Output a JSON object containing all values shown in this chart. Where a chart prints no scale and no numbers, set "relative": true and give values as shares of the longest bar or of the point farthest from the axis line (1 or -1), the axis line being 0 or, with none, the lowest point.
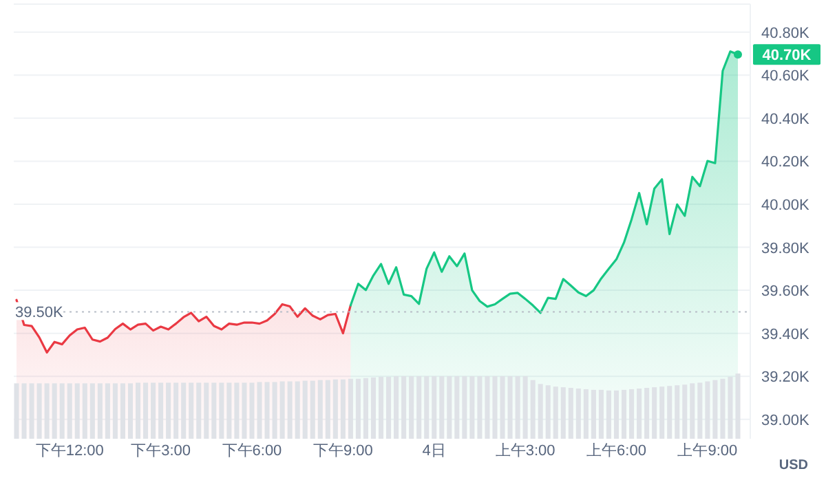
{
  "chart_data": [
    {
      "type": "area",
      "ylabel": "USD",
      "categories": [
        null,
        null,
        null,
        null,
        null,
        null,
        null,
        "下午12:00",
        null,
        null,
        null,
        null,
        null,
        null,
        null,
        null,
        null,
        null,
        null,
        "下午3:00",
        null,
        null,
        null,
        null,
        null,
        null,
        null,
        null,
        null,
        null,
        null,
        "下午6:00",
        null,
        null,
        null,
        null,
        null,
        null,
        null,
        null,
        null,
        null,
        null,
        "下午9:00",
        null,
        null,
        null,
        null,
        null,
        null,
        null,
        null,
        null,
        null,
        null,
        "4日",
        null,
        null,
        null,
        null,
        null,
        null,
        null,
        null,
        null,
        null,
        null,
        "上午3:00",
        null,
        null,
        null,
        null,
        null,
        null,
        null,
        null,
        null,
        null,
        null,
        "上午6:00",
        null,
        null,
        null,
        null,
        null,
        null,
        null,
        null,
        null,
        null,
        null,
        "上午9:00",
        null,
        null,
        null,
        null
      ],
      "ylim": [
        38910,
        40930
      ],
      "yticks": [
        {
          "value": 39000,
          "label": "39.00K"
        },
        {
          "value": 39200,
          "label": "39.20K"
        },
        {
          "value": 39400,
          "label": "39.40K"
        },
        {
          "value": 39600,
          "label": "39.60K"
        },
        {
          "value": 39800,
          "label": "39.80K"
        },
        {
          "value": 40000,
          "label": "40.00K"
        },
        {
          "value": 40200,
          "label": "40.20K"
        },
        {
          "value": 40400,
          "label": "40.40K"
        },
        {
          "value": 40600,
          "label": "40.60K"
        },
        {
          "value": 40800,
          "label": "40.80K"
        }
      ],
      "grid": "y",
      "ref_lines": [
        {
          "axis": "y",
          "value": 39500,
          "label": "39.50K",
          "color": "#b8bec8",
          "line_style": "dotted"
        }
      ],
      "annotations": [
        "40.70K"
      ],
      "series": [
        {
          "color": "#ea3943",
          "values": [
            39555,
            39439,
            39434,
            39381,
            39311,
            39360,
            39349,
            39390,
            39418,
            39426,
            39371,
            39362,
            39380,
            39420,
            39445,
            39418,
            39440,
            39445,
            39413,
            39431,
            39418,
            39445,
            39475,
            39495,
            39456,
            39477,
            39434,
            39418,
            39445,
            39440,
            39450,
            39450,
            39445,
            39460,
            39490,
            39535,
            39525,
            39477,
            39516,
            39482,
            39465,
            39485,
            39490,
            39400,
            39530,
            null,
            null,
            null,
            null,
            null,
            null,
            null,
            null,
            null,
            null,
            null,
            null,
            null,
            null,
            null,
            null,
            null,
            null,
            null,
            null,
            null,
            null,
            null,
            null,
            null,
            null,
            null,
            null,
            null,
            null,
            null,
            null,
            null,
            null,
            null,
            null,
            null,
            null,
            null,
            null,
            null,
            null,
            null,
            null,
            null,
            null,
            null,
            null,
            null,
            null,
            null
          ]
        },
        {
          "color": "#16c784",
          "values": [
            null,
            null,
            null,
            null,
            null,
            null,
            null,
            null,
            null,
            null,
            null,
            null,
            null,
            null,
            null,
            null,
            null,
            null,
            null,
            null,
            null,
            null,
            null,
            null,
            null,
            null,
            null,
            null,
            null,
            null,
            null,
            null,
            null,
            null,
            null,
            null,
            null,
            null,
            null,
            null,
            null,
            null,
            null,
            null,
            39530,
            39630,
            39601,
            39669,
            39722,
            39630,
            39707,
            39580,
            39573,
            39537,
            39700,
            39776,
            39686,
            39758,
            39712,
            39771,
            39600,
            39550,
            39524,
            39535,
            39560,
            39584,
            39588,
            39560,
            39530,
            39495,
            39565,
            39560,
            39652,
            39622,
            39590,
            39573,
            39600,
            39655,
            39700,
            39744,
            39822,
            39930,
            40052,
            39907,
            40073,
            40116,
            39861,
            39999,
            39946,
            40127,
            40084,
            40201,
            40191,
            40620,
            40710,
            40696
          ]
        }
      ]
    },
    {
      "type": "bar",
      "relative": true,
      "color": "#dfe2e7",
      "categories": [
        null,
        null,
        null,
        null,
        null,
        null,
        null,
        null,
        null,
        null,
        null,
        null,
        null,
        null,
        null,
        null,
        null,
        null,
        null,
        null,
        null,
        null,
        null,
        null,
        null,
        null,
        null,
        null,
        null,
        null,
        null,
        null,
        null,
        null,
        null,
        null,
        null,
        null,
        null,
        null,
        null,
        null,
        null,
        null,
        null,
        null,
        null,
        null,
        null,
        null,
        null,
        null,
        null,
        null,
        null,
        null,
        null,
        null,
        null,
        null,
        null,
        null,
        null,
        null,
        null,
        null,
        null,
        null,
        null,
        null,
        null,
        null,
        null,
        null,
        null,
        null,
        null,
        null,
        null,
        null,
        null,
        null,
        null,
        null,
        null,
        null,
        null,
        null,
        null,
        null,
        null,
        null,
        null,
        null,
        null,
        null
      ],
      "values": [
        0.85,
        0.85,
        0.85,
        0.85,
        0.85,
        0.85,
        0.85,
        0.85,
        0.85,
        0.85,
        0.85,
        0.85,
        0.85,
        0.85,
        0.85,
        0.85,
        0.86,
        0.86,
        0.86,
        0.86,
        0.86,
        0.86,
        0.86,
        0.86,
        0.86,
        0.86,
        0.86,
        0.86,
        0.86,
        0.86,
        0.86,
        0.86,
        0.87,
        0.87,
        0.87,
        0.88,
        0.88,
        0.88,
        0.89,
        0.89,
        0.9,
        0.9,
        0.91,
        0.91,
        0.92,
        0.92,
        0.93,
        0.94,
        0.95,
        0.95,
        0.96,
        0.96,
        0.96,
        0.96,
        0.96,
        0.96,
        0.96,
        0.96,
        0.96,
        0.96,
        0.96,
        0.96,
        0.96,
        0.96,
        0.96,
        0.96,
        0.96,
        0.96,
        0.9,
        0.84,
        0.82,
        0.8,
        0.79,
        0.78,
        0.77,
        0.76,
        0.75,
        0.75,
        0.74,
        0.74,
        0.75,
        0.76,
        0.77,
        0.78,
        0.79,
        0.8,
        0.81,
        0.82,
        0.83,
        0.85,
        0.86,
        0.88,
        0.9,
        0.92,
        0.95,
        1.0
      ]
    }
  ]
}
